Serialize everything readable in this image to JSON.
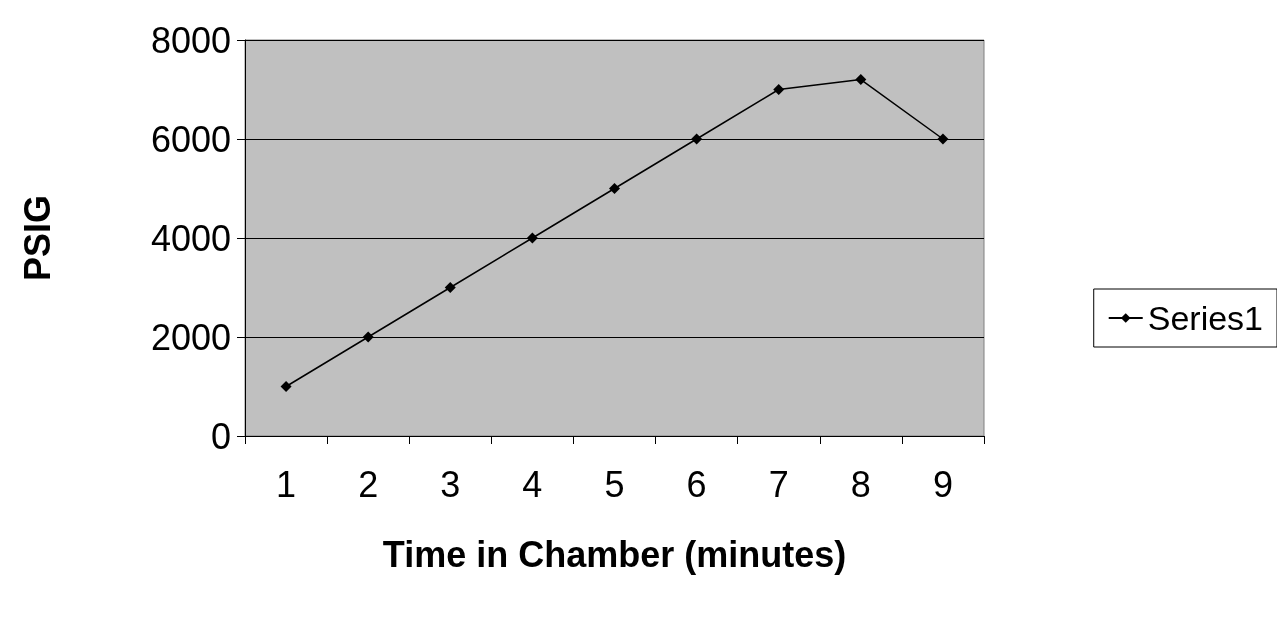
{
  "chart_data": {
    "type": "line",
    "xlabel": "Time in Chamber (minutes)",
    "ylabel": "PSIG",
    "categories": [
      "1",
      "2",
      "3",
      "4",
      "5",
      "6",
      "7",
      "8",
      "9"
    ],
    "series": [
      {
        "name": "Series1",
        "color": "#000000",
        "values": [
          1000,
          2000,
          3000,
          4000,
          5000,
          6000,
          7000,
          7200,
          6000
        ]
      }
    ],
    "ylim": [
      0,
      8000
    ],
    "yticks": [
      0,
      2000,
      4000,
      6000,
      8000
    ],
    "grid": "y",
    "legend": "right",
    "marker": "diamond",
    "line_style": "solid"
  }
}
